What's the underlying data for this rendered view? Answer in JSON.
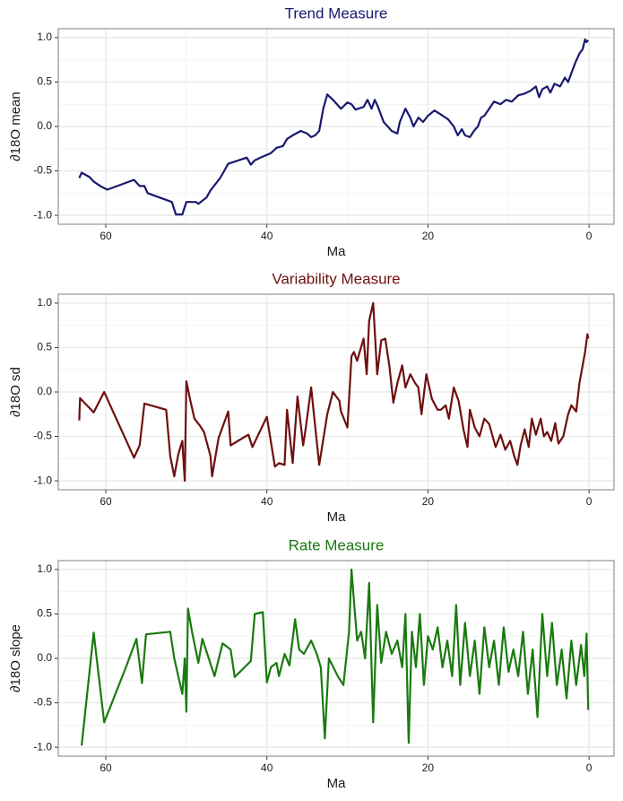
{
  "chart_data": [
    {
      "type": "line",
      "title": "Trend Measure",
      "x_label": "Ma",
      "y_label": "∂18O mean",
      "color": "#191970",
      "grid": true,
      "xlim": [
        65.9,
        -3.1
      ],
      "xticks": [
        60,
        40,
        20,
        0
      ],
      "ylim": [
        -1.1,
        1.1
      ],
      "yticks": [
        {
          "value": -1,
          "label": "-1.0"
        },
        -0.5,
        {
          "value": 0,
          "label": "0.0"
        },
        0.5,
        {
          "value": 1,
          "label": "1.0"
        }
      ],
      "x": [
        63.3,
        63.0,
        62.0,
        61.5,
        60.5,
        59.8,
        56.5,
        55.8,
        55.2,
        54.8,
        51.8,
        51.3,
        50.5,
        50.0,
        48.8,
        48.5,
        47.5,
        47.0,
        45.8,
        44.8,
        42.5,
        42.0,
        41.5,
        40.8,
        39.5,
        38.8,
        38.0,
        37.5,
        36.8,
        35.8,
        35.0,
        34.5,
        34.0,
        33.5,
        33.0,
        32.5,
        31.8,
        30.8,
        30.0,
        29.5,
        29.0,
        28.0,
        27.5,
        27.0,
        26.6,
        26.2,
        25.5,
        24.5,
        23.8,
        23.5,
        22.8,
        22.2,
        21.8,
        21.2,
        20.6,
        20.0,
        19.2,
        18.5,
        17.5,
        16.8,
        16.3,
        15.8,
        15.4,
        14.8,
        14.3,
        13.8,
        13.4,
        13.0,
        12.4,
        11.8,
        11.0,
        10.3,
        9.6,
        8.8,
        8.0,
        7.3,
        6.6,
        6.2,
        5.8,
        5.2,
        4.8,
        4.3,
        3.6,
        3.0,
        2.6,
        2.2,
        1.7,
        1.2,
        0.8,
        0.5,
        0.3,
        0.1
      ],
      "values": [
        -0.58,
        -0.52,
        -0.57,
        -0.62,
        -0.68,
        -0.71,
        -0.6,
        -0.67,
        -0.67,
        -0.75,
        -0.85,
        -0.99,
        -0.99,
        -0.85,
        -0.85,
        -0.87,
        -0.8,
        -0.72,
        -0.58,
        -0.42,
        -0.35,
        -0.43,
        -0.38,
        -0.35,
        -0.3,
        -0.24,
        -0.22,
        -0.14,
        -0.1,
        -0.05,
        -0.08,
        -0.12,
        -0.1,
        -0.05,
        0.2,
        0.36,
        0.3,
        0.2,
        0.27,
        0.25,
        0.19,
        0.22,
        0.3,
        0.2,
        0.3,
        0.22,
        0.05,
        -0.05,
        -0.08,
        0.05,
        0.2,
        0.1,
        0.0,
        0.1,
        0.05,
        0.12,
        0.18,
        0.14,
        0.08,
        0.0,
        -0.1,
        -0.03,
        -0.1,
        -0.12,
        -0.05,
        0.0,
        0.1,
        0.12,
        0.2,
        0.28,
        0.25,
        0.3,
        0.28,
        0.35,
        0.37,
        0.4,
        0.45,
        0.33,
        0.42,
        0.45,
        0.38,
        0.48,
        0.45,
        0.55,
        0.5,
        0.6,
        0.72,
        0.82,
        0.87,
        0.98,
        0.95,
        0.97
      ]
    },
    {
      "type": "line",
      "title": "Variability Measure",
      "x_label": "Ma",
      "y_label": "∂18O sd",
      "color": "#6e0f0f",
      "grid": true,
      "xlim": [
        65.9,
        -3.1
      ],
      "xticks": [
        60,
        40,
        20,
        0
      ],
      "ylim": [
        -1.1,
        1.1
      ],
      "yticks": [
        {
          "value": -1,
          "label": "-1.0"
        },
        -0.5,
        {
          "value": 0,
          "label": "0.0"
        },
        0.5,
        {
          "value": 1,
          "label": "1.0"
        }
      ],
      "x": [
        63.3,
        63.2,
        61.5,
        60.2,
        56.5,
        55.8,
        55.2,
        52.5,
        52.0,
        51.5,
        51.0,
        50.5,
        50.2,
        50.0,
        49.5,
        49.0,
        48.3,
        47.8,
        47.0,
        46.8,
        46.0,
        44.8,
        44.5,
        42.3,
        41.8,
        40.0,
        39.0,
        38.5,
        37.8,
        37.5,
        36.8,
        36.2,
        35.5,
        35.2,
        34.5,
        33.5,
        32.5,
        31.8,
        31.0,
        30.8,
        30.0,
        29.5,
        29.2,
        28.8,
        28.0,
        27.6,
        27.3,
        26.8,
        26.3,
        25.8,
        25.3,
        24.8,
        24.3,
        23.8,
        23.2,
        22.8,
        22.2,
        21.6,
        21.2,
        20.8,
        20.2,
        19.5,
        18.8,
        18.4,
        17.8,
        17.4,
        16.8,
        16.2,
        15.6,
        15.1,
        14.8,
        14.2,
        13.6,
        13.0,
        12.4,
        11.6,
        11.0,
        10.4,
        9.8,
        9.3,
        8.9,
        8.5,
        8.0,
        7.5,
        7.1,
        6.6,
        6.0,
        5.6,
        5.2,
        4.7,
        4.2,
        3.8,
        3.2,
        2.6,
        2.2,
        1.6,
        1.2,
        0.8,
        0.5,
        0.2,
        0.1
      ],
      "values": [
        -0.32,
        -0.07,
        -0.23,
        0.0,
        -0.74,
        -0.6,
        -0.13,
        -0.2,
        -0.72,
        -0.95,
        -0.7,
        -0.55,
        -1.0,
        0.12,
        -0.1,
        -0.3,
        -0.38,
        -0.45,
        -0.72,
        -0.95,
        -0.52,
        -0.22,
        -0.6,
        -0.48,
        -0.62,
        -0.28,
        -0.84,
        -0.8,
        -0.82,
        -0.2,
        -0.8,
        -0.05,
        -0.6,
        -0.42,
        0.05,
        -0.82,
        -0.25,
        0.0,
        -0.1,
        -0.22,
        -0.4,
        0.4,
        0.45,
        0.35,
        0.6,
        0.2,
        0.8,
        1.0,
        0.2,
        0.58,
        0.6,
        0.3,
        -0.12,
        0.1,
        0.3,
        0.05,
        0.2,
        0.1,
        0.05,
        -0.25,
        0.2,
        -0.08,
        -0.2,
        -0.2,
        -0.15,
        -0.3,
        0.05,
        -0.1,
        -0.42,
        -0.62,
        -0.2,
        -0.4,
        -0.5,
        -0.3,
        -0.36,
        -0.62,
        -0.48,
        -0.65,
        -0.55,
        -0.72,
        -0.82,
        -0.6,
        -0.42,
        -0.62,
        -0.3,
        -0.48,
        -0.3,
        -0.5,
        -0.45,
        -0.55,
        -0.35,
        -0.58,
        -0.5,
        -0.25,
        -0.15,
        -0.22,
        0.1,
        0.3,
        0.45,
        0.65,
        0.6
      ]
    },
    {
      "type": "line",
      "title": "Rate Measure",
      "x_label": "Ma",
      "y_label": "∂18O slope",
      "color": "#1a7a0f",
      "grid": true,
      "xlim": [
        65.9,
        -3.1
      ],
      "xticks": [
        60,
        40,
        20,
        0
      ],
      "ylim": [
        -1.1,
        1.1
      ],
      "yticks": [
        {
          "value": -1,
          "label": "-1.0"
        },
        -0.5,
        {
          "value": 0,
          "label": "0.0"
        },
        0.5,
        {
          "value": 1,
          "label": "1.0"
        }
      ],
      "x": [
        63.0,
        61.5,
        60.2,
        57.5,
        56.2,
        55.5,
        55.0,
        52.0,
        51.5,
        50.5,
        50.2,
        50.0,
        49.8,
        49.3,
        48.5,
        48.0,
        46.5,
        45.5,
        44.5,
        44.0,
        42.0,
        41.5,
        40.5,
        40.0,
        39.5,
        38.8,
        38.5,
        37.8,
        37.2,
        36.5,
        36.0,
        35.4,
        34.5,
        33.8,
        33.3,
        32.8,
        32.3,
        31.2,
        30.5,
        29.8,
        29.5,
        28.8,
        28.3,
        27.8,
        27.3,
        26.8,
        26.3,
        25.8,
        25.2,
        24.5,
        23.8,
        23.2,
        22.8,
        22.4,
        22.0,
        21.5,
        21.0,
        20.5,
        20.0,
        19.4,
        18.8,
        18.2,
        17.6,
        17.0,
        16.5,
        16.0,
        15.4,
        14.8,
        14.2,
        13.6,
        13.0,
        12.4,
        11.8,
        11.2,
        10.6,
        10.0,
        9.4,
        8.8,
        8.2,
        7.6,
        7.0,
        6.4,
        5.8,
        5.2,
        4.6,
        4.0,
        3.4,
        2.8,
        2.2,
        1.6,
        1.0,
        0.6,
        0.3,
        0.1
      ],
      "values": [
        -0.98,
        0.29,
        -0.72,
        -0.1,
        0.22,
        -0.28,
        0.27,
        0.3,
        0.0,
        -0.4,
        0.0,
        -0.6,
        0.56,
        0.3,
        -0.05,
        0.22,
        -0.2,
        0.17,
        0.1,
        -0.21,
        -0.03,
        0.5,
        0.52,
        -0.27,
        -0.1,
        -0.05,
        -0.2,
        0.05,
        -0.08,
        0.44,
        0.1,
        0.05,
        0.2,
        0.05,
        -0.1,
        -0.9,
        0.0,
        -0.2,
        -0.3,
        0.3,
        1.0,
        0.2,
        0.3,
        0.0,
        0.85,
        -0.72,
        0.6,
        -0.05,
        0.3,
        0.05,
        0.2,
        -0.1,
        0.5,
        -0.95,
        0.3,
        -0.1,
        0.5,
        -0.3,
        0.25,
        0.1,
        0.35,
        -0.1,
        0.2,
        -0.2,
        0.6,
        -0.3,
        0.4,
        -0.2,
        0.2,
        -0.4,
        0.35,
        -0.1,
        0.2,
        -0.3,
        0.35,
        -0.15,
        0.1,
        -0.2,
        0.3,
        -0.4,
        0.1,
        -0.66,
        0.5,
        -0.2,
        0.4,
        -0.3,
        0.1,
        -0.45,
        0.2,
        -0.3,
        0.15,
        -0.2,
        0.28,
        -0.58
      ]
    }
  ]
}
